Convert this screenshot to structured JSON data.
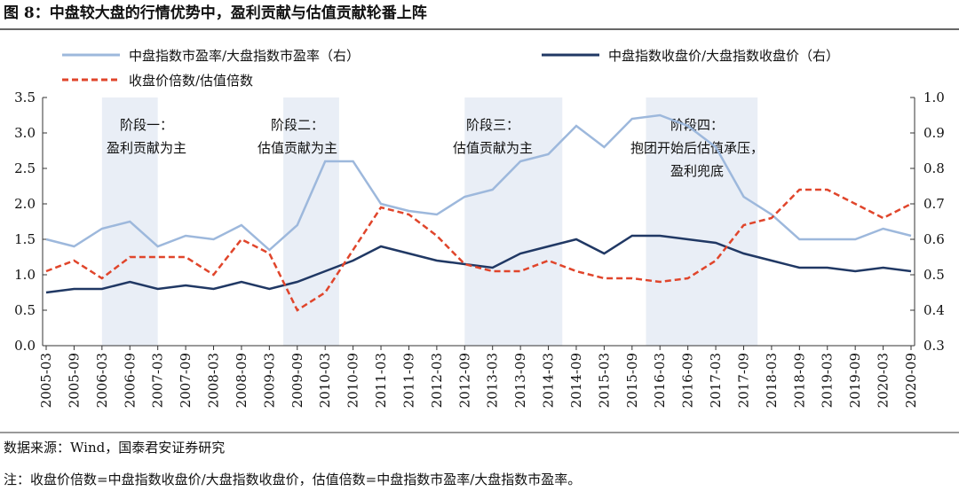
{
  "chart_data": {
    "type": "line",
    "title": "图 8：中盘较大盘的行情优势中，盈利贡献与估值贡献轮番上阵",
    "categories": [
      "2005-03",
      "2005-09",
      "2006-03",
      "2006-09",
      "2007-03",
      "2007-09",
      "2008-03",
      "2008-09",
      "2009-03",
      "2009-09",
      "2010-03",
      "2010-09",
      "2011-03",
      "2011-09",
      "2012-03",
      "2012-09",
      "2013-03",
      "2013-09",
      "2014-03",
      "2014-09",
      "2015-03",
      "2015-09",
      "2016-03",
      "2016-09",
      "2017-03",
      "2017-09",
      "2018-03",
      "2018-09",
      "2019-03",
      "2019-09",
      "2020-03",
      "2020-09"
    ],
    "series": [
      {
        "name": "中盘指数市盈率/大盘指数市盈率（右）",
        "color": "#9db8dc",
        "dash": false,
        "axis": "y2",
        "values": [
          0.6,
          0.58,
          0.63,
          0.65,
          0.58,
          0.61,
          0.6,
          0.64,
          0.57,
          0.64,
          0.82,
          0.82,
          0.7,
          0.68,
          0.67,
          0.72,
          0.74,
          0.82,
          0.84,
          0.92,
          0.86,
          0.94,
          0.95,
          0.92,
          0.86,
          0.72,
          0.67,
          0.6,
          0.6,
          0.6,
          0.63,
          0.61
        ]
      },
      {
        "name": "中盘指数收盘价/大盘指数收盘价（右）",
        "color": "#203864",
        "dash": false,
        "axis": "y2",
        "values": [
          0.45,
          0.46,
          0.46,
          0.48,
          0.46,
          0.47,
          0.46,
          0.48,
          0.46,
          0.48,
          0.51,
          0.54,
          0.58,
          0.56,
          0.54,
          0.53,
          0.52,
          0.56,
          0.58,
          0.6,
          0.56,
          0.61,
          0.61,
          0.6,
          0.59,
          0.56,
          0.54,
          0.52,
          0.52,
          0.51,
          0.52,
          0.51
        ]
      },
      {
        "name": "收盘价倍数/估值倍数",
        "color": "#e0452b",
        "dash": true,
        "values": [
          1.05,
          1.2,
          0.95,
          1.25,
          1.25,
          1.25,
          1.0,
          1.5,
          1.3,
          0.5,
          0.75,
          1.35,
          1.95,
          1.85,
          1.55,
          1.15,
          1.05,
          1.05,
          1.2,
          1.05,
          0.95,
          0.95,
          0.9,
          0.95,
          1.2,
          1.7,
          1.8,
          2.2,
          2.2,
          2.0,
          1.8,
          2.0
        ]
      }
    ],
    "ylim": [
      0,
      3.5
    ],
    "yticks": [
      {
        "value": 0,
        "label": "0.0"
      },
      0.5,
      {
        "value": 1,
        "label": "1.0"
      },
      1.5,
      {
        "value": 2,
        "label": "2.0"
      },
      2.5,
      {
        "value": 3,
        "label": "3.0"
      },
      3.5
    ],
    "y2lim": [
      0.3,
      1.0
    ],
    "y2ticks": [
      0.3,
      0.4,
      0.5,
      0.6,
      0.7,
      0.8,
      0.9,
      {
        "value": 1,
        "label": "1.0"
      }
    ],
    "annotations": [
      {
        "lines": [
          "阶段一：",
          "盈利贡献为主"
        ]
      },
      {
        "lines": [
          "阶段二：",
          "估值贡献为主"
        ]
      },
      {
        "lines": [
          "阶段三：",
          "估值贡献为主"
        ]
      },
      {
        "lines": [
          "阶段四：",
          "抱团开始后估值承压，",
          "盈利兜底"
        ]
      }
    ],
    "source": "数据来源：Wind，国泰君安证券研究",
    "note": "注：收盘价倍数=中盘指数收盘价/大盘指数收盘价，估值倍数=中盘指数市盈率/大盘指数市盈率。"
  }
}
